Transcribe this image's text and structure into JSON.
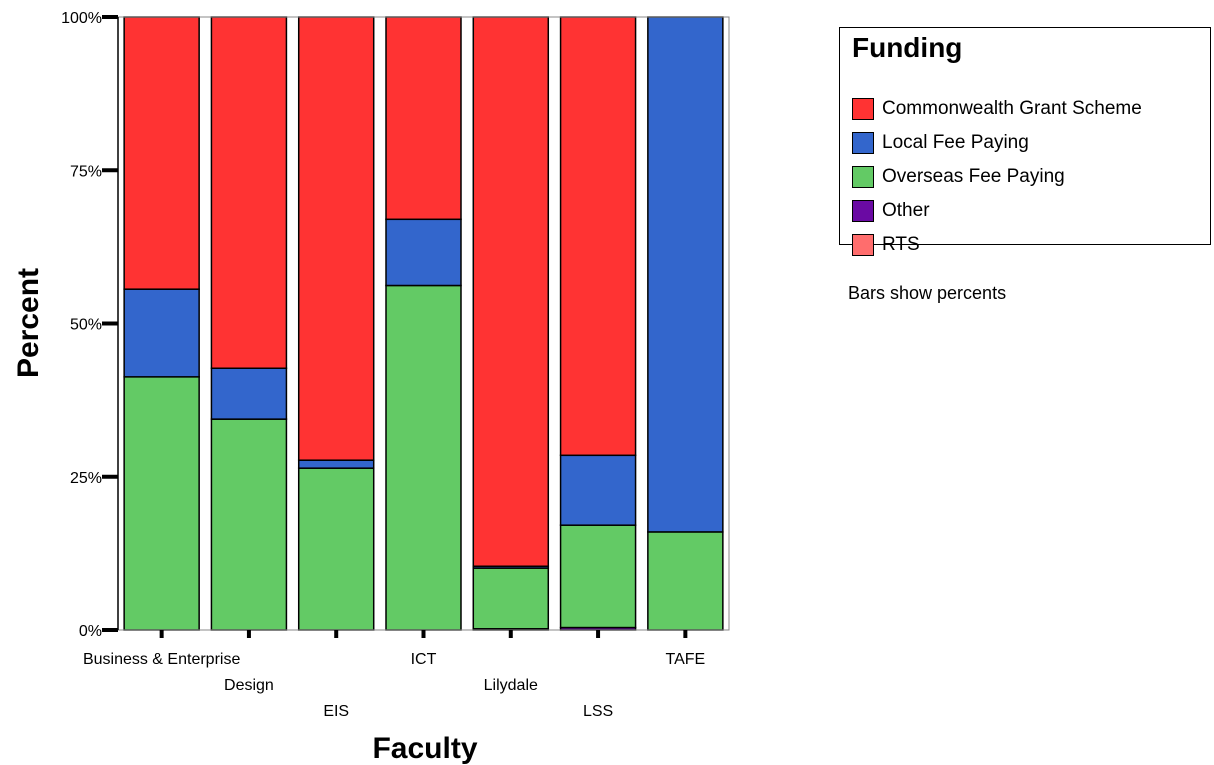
{
  "chart_data": {
    "type": "bar",
    "stacked": true,
    "percent": true,
    "xlabel": "Faculty",
    "ylabel": "Percent",
    "ylim": [
      0,
      100
    ],
    "y_ticks": [
      "0%",
      "25%",
      "50%",
      "75%",
      "100%"
    ],
    "categories": [
      "Business & Enterprise",
      "Design",
      "EIS",
      "ICT",
      "Lilydale",
      "LSS",
      "TAFE"
    ],
    "legend_title": "Funding",
    "legend_position": "top-right",
    "note": "Bars show percents",
    "series": [
      {
        "name": "Other",
        "color": "#6a0aa3",
        "values": [
          0,
          0,
          0,
          0,
          0.2,
          0.4,
          0
        ]
      },
      {
        "name": "RTS",
        "color": "#ff6d6d",
        "values": [
          0,
          0,
          0,
          0,
          0,
          0,
          0
        ]
      },
      {
        "name": "Overseas Fee Paying",
        "color": "#63ca65",
        "values": [
          41.3,
          34.4,
          26.4,
          56.2,
          9.9,
          16.7,
          16.0
        ]
      },
      {
        "name": "Local Fee Paying",
        "color": "#3366cc",
        "values": [
          14.3,
          8.3,
          1.3,
          10.8,
          0.3,
          11.4,
          84.0
        ]
      },
      {
        "name": "Commonwealth Grant Scheme",
        "color": "#ff3333",
        "values": [
          44.4,
          57.3,
          72.3,
          33.0,
          89.6,
          71.5,
          0
        ]
      }
    ],
    "legend_order": [
      "Commonwealth Grant Scheme",
      "Local Fee Paying",
      "Overseas Fee Paying",
      "Other",
      "RTS"
    ]
  }
}
